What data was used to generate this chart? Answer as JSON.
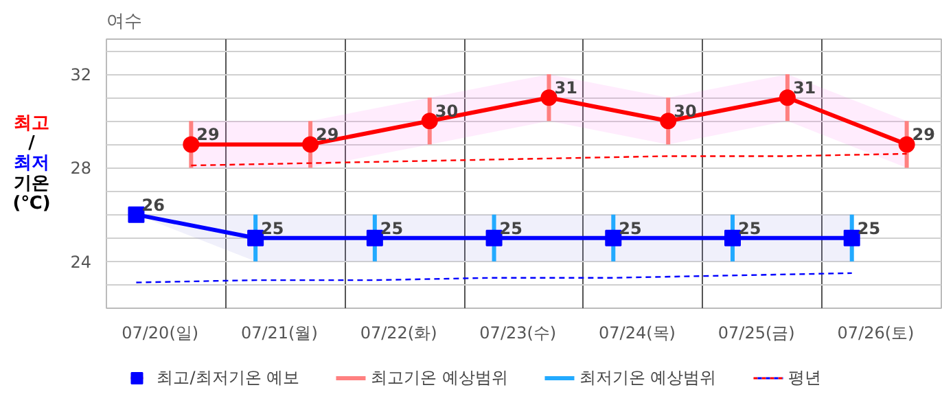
{
  "chart_data": {
    "type": "line",
    "title": "여수",
    "ylabel": "최고/최저 기온(℃)",
    "categories": [
      "07/20(일)",
      "07/21(월)",
      "07/22(화)",
      "07/23(수)",
      "07/24(목)",
      "07/25(금)",
      "07/26(토)"
    ],
    "ylim": [
      22,
      33.5
    ],
    "yticks": [
      {
        "value": 23,
        "label": null
      },
      24,
      {
        "value": 25,
        "label": null
      },
      {
        "value": 26,
        "label": null
      },
      {
        "value": 27,
        "label": null
      },
      28,
      {
        "value": 29,
        "label": null
      },
      {
        "value": 30,
        "label": null
      },
      {
        "value": 31,
        "label": null
      },
      32,
      {
        "value": 33,
        "label": null
      }
    ],
    "grid": true,
    "legend": "bottom",
    "annotations": [
      "최고기온 예상범위",
      "최저기온 예상범위"
    ],
    "series": [
      {
        "name": "최고/최저기온 예보",
        "color": "#ff0000",
        "marker": "circle",
        "values": [
          29,
          29,
          30,
          31,
          30,
          31,
          29
        ],
        "value_labels": [
          "29",
          "29",
          "30",
          "31",
          "30",
          "31",
          "29"
        ],
        "errors": [
          1,
          1,
          1,
          1,
          1,
          1,
          1
        ],
        "lower": [
          28,
          28,
          29,
          30,
          29,
          30,
          28
        ],
        "upper": [
          30,
          30,
          31,
          32,
          31,
          32,
          30
        ]
      },
      {
        "color": "#0000ff",
        "marker": "square",
        "values": [
          26,
          25,
          25,
          25,
          25,
          25,
          25
        ],
        "value_labels": [
          "26",
          "25",
          "25",
          "25",
          "25",
          "25",
          "25"
        ],
        "errors": [
          null,
          1,
          1,
          1,
          1,
          1,
          1
        ],
        "lower": [
          26,
          24,
          24,
          24,
          24,
          24,
          24
        ],
        "upper": [
          26,
          26,
          26,
          26,
          26,
          26,
          26
        ]
      },
      {
        "name": "평년",
        "color": "#ff0000",
        "marker": "none",
        "line_style": "dashed",
        "values": [
          28.1,
          28.2,
          28.3,
          28.4,
          28.5,
          28.5,
          28.6
        ]
      },
      {
        "color": "#0000ff",
        "marker": "none",
        "line_style": "dashed",
        "values": [
          23.1,
          23.2,
          23.2,
          23.3,
          23.3,
          23.4,
          23.5
        ]
      }
    ]
  }
}
